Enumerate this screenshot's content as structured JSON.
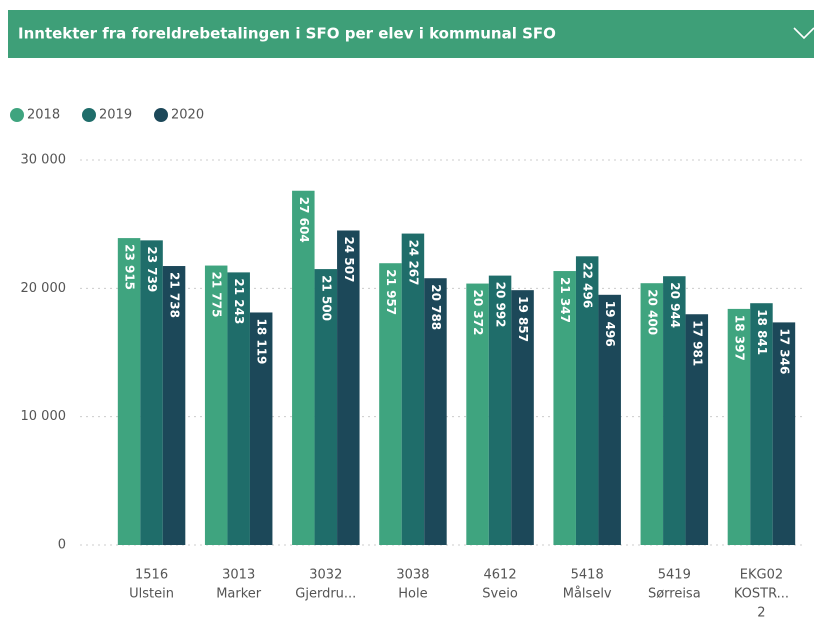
{
  "chart_data": {
    "type": "bar",
    "title": "Inntekter fra foreldrebetalingen i SFO per elev i kommunal SFO",
    "categories": [
      [
        "1516",
        "Ulstein"
      ],
      [
        "3013",
        "Marker"
      ],
      [
        "3032",
        "Gjerdru..."
      ],
      [
        "3038",
        "Hole"
      ],
      [
        "4612",
        "Sveio"
      ],
      [
        "5418",
        "Målselv"
      ],
      [
        "5419",
        "Sørreisa"
      ],
      [
        "EKG02",
        "KOSTR...",
        "2"
      ]
    ],
    "series": [
      {
        "name": "2018",
        "color": "#3fa47f",
        "values": [
          23915,
          21775,
          27604,
          21957,
          20372,
          21347,
          20400,
          18397
        ],
        "value_labels": [
          "23 915",
          "21 775",
          "27 604",
          "21 957",
          "20 372",
          "21 347",
          "20 400",
          "18 397"
        ]
      },
      {
        "name": "2019",
        "color": "#1f6d6a",
        "values": [
          23739,
          21243,
          21500,
          24267,
          20992,
          22496,
          20944,
          18841
        ],
        "value_labels": [
          "23 739",
          "21 243",
          "21 500",
          "24 267",
          "20 992",
          "22 496",
          "20 944",
          "18 841"
        ]
      },
      {
        "name": "2020",
        "color": "#1c4859",
        "values": [
          21738,
          18119,
          24507,
          20788,
          19857,
          19496,
          17981,
          17346
        ],
        "value_labels": [
          "21 738",
          "18 119",
          "24 507",
          "20 788",
          "19 857",
          "19 496",
          "17 981",
          "17 346"
        ]
      }
    ],
    "ylim": [
      0,
      30000
    ],
    "yticks": [
      {
        "value": 0,
        "label": "0"
      },
      {
        "value": 10000,
        "label": "10 000"
      },
      {
        "value": 20000,
        "label": "20 000"
      },
      {
        "value": 30000,
        "label": "30 000"
      }
    ],
    "grid": true
  }
}
